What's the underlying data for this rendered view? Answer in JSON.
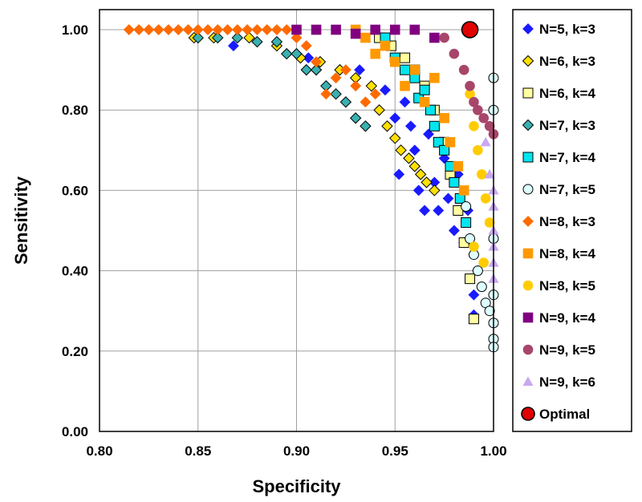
{
  "chart_data": {
    "type": "scatter",
    "xlabel": "Specificity",
    "ylabel": "Sensitivity",
    "xlim": [
      0.8,
      1.0
    ],
    "ylim": [
      0.0,
      1.05
    ],
    "xticks": [
      "0.80",
      "0.85",
      "0.90",
      "0.95",
      "1.00"
    ],
    "yticks": [
      "0.00",
      "0.20",
      "0.40",
      "0.60",
      "0.80",
      "1.00"
    ],
    "grid": true,
    "legend_position": "right",
    "series": [
      {
        "name": "N=5, k=3",
        "marker": "diamond",
        "color": "#1a1aff",
        "stroke": "#1a1aff",
        "x": [
          0.868,
          0.906,
          0.932,
          0.945,
          0.95,
          0.952,
          0.955,
          0.958,
          0.96,
          0.962,
          0.965,
          0.967,
          0.97,
          0.972,
          0.975,
          0.977,
          0.98,
          0.982,
          0.985,
          0.987,
          0.99,
          0.99,
          0.992
        ],
        "y": [
          0.96,
          0.93,
          0.9,
          0.85,
          0.78,
          0.64,
          0.82,
          0.76,
          0.7,
          0.6,
          0.55,
          0.74,
          0.62,
          0.55,
          0.68,
          0.58,
          0.5,
          0.64,
          0.47,
          0.55,
          0.29,
          0.34,
          0.4
        ]
      },
      {
        "name": "N=6, k=3",
        "marker": "diamond",
        "color": "#ffe000",
        "stroke": "#000000",
        "x": [
          0.848,
          0.858,
          0.876,
          0.89,
          0.902,
          0.912,
          0.922,
          0.93,
          0.938,
          0.942,
          0.946,
          0.95,
          0.953,
          0.957,
          0.96,
          0.963,
          0.966,
          0.97
        ],
        "y": [
          0.98,
          0.98,
          0.98,
          0.96,
          0.93,
          0.92,
          0.9,
          0.88,
          0.86,
          0.8,
          0.76,
          0.73,
          0.7,
          0.68,
          0.66,
          0.64,
          0.62,
          0.6
        ]
      },
      {
        "name": "N=6, k=4",
        "marker": "square",
        "color": "#ffffa0",
        "stroke": "#000000",
        "x": [
          0.942,
          0.948,
          0.955,
          0.96,
          0.965,
          0.97,
          0.975,
          0.978,
          0.982,
          0.985,
          0.988,
          0.99
        ],
        "y": [
          0.98,
          0.96,
          0.93,
          0.9,
          0.86,
          0.8,
          0.72,
          0.64,
          0.55,
          0.47,
          0.38,
          0.28
        ]
      },
      {
        "name": "N=7, k=3",
        "marker": "diamond",
        "color": "#3ab0b0",
        "stroke": "#000000",
        "x": [
          0.85,
          0.86,
          0.87,
          0.88,
          0.89,
          0.895,
          0.9,
          0.905,
          0.91,
          0.915,
          0.92,
          0.925,
          0.93,
          0.935
        ],
        "y": [
          0.98,
          0.98,
          0.98,
          0.97,
          0.97,
          0.94,
          0.94,
          0.9,
          0.9,
          0.86,
          0.84,
          0.82,
          0.78,
          0.76
        ]
      },
      {
        "name": "N=7, k=4",
        "marker": "square",
        "color": "#00e5ee",
        "stroke": "#000000",
        "x": [
          0.945,
          0.95,
          0.955,
          0.96,
          0.962,
          0.965,
          0.968,
          0.97,
          0.972,
          0.975,
          0.978,
          0.98,
          0.983,
          0.986
        ],
        "y": [
          0.98,
          0.93,
          0.9,
          0.88,
          0.83,
          0.85,
          0.8,
          0.76,
          0.72,
          0.7,
          0.66,
          0.62,
          0.58,
          0.52
        ]
      },
      {
        "name": "N=7, k=5",
        "marker": "circle",
        "color": "#ddffff",
        "stroke": "#000000",
        "x": [
          0.986,
          0.988,
          0.99,
          0.992,
          0.994,
          0.996,
          0.998,
          1.0,
          1.0,
          1.0,
          1.0,
          1.0,
          1.0,
          1.0
        ],
        "y": [
          0.56,
          0.48,
          0.44,
          0.4,
          0.36,
          0.32,
          0.3,
          0.27,
          0.23,
          0.21,
          0.8,
          0.88,
          0.34,
          0.48
        ]
      },
      {
        "name": "N=8, k=3",
        "marker": "diamond",
        "color": "#ff6a00",
        "stroke": "#ff6a00",
        "x": [
          0.815,
          0.82,
          0.825,
          0.83,
          0.835,
          0.84,
          0.845,
          0.85,
          0.855,
          0.86,
          0.865,
          0.87,
          0.875,
          0.88,
          0.885,
          0.89,
          0.895,
          0.9,
          0.905,
          0.91,
          0.915,
          0.92,
          0.925,
          0.93,
          0.935,
          0.94
        ],
        "y": [
          1.0,
          1.0,
          1.0,
          1.0,
          1.0,
          1.0,
          1.0,
          1.0,
          1.0,
          1.0,
          1.0,
          1.0,
          1.0,
          1.0,
          1.0,
          1.0,
          1.0,
          0.98,
          0.96,
          0.92,
          0.84,
          0.88,
          0.9,
          0.86,
          0.82,
          0.84
        ]
      },
      {
        "name": "N=8, k=4",
        "marker": "square",
        "color": "#ff9900",
        "stroke": "#ff9900",
        "x": [
          0.93,
          0.935,
          0.94,
          0.945,
          0.95,
          0.955,
          0.96,
          0.965,
          0.97,
          0.975,
          0.978,
          0.982,
          0.985
        ],
        "y": [
          1.0,
          0.98,
          0.94,
          0.96,
          0.92,
          0.86,
          0.9,
          0.82,
          0.88,
          0.78,
          0.72,
          0.66,
          0.6
        ]
      },
      {
        "name": "N=8, k=5",
        "marker": "circle",
        "color": "#ffcc00",
        "stroke": "#ffcc00",
        "x": [
          0.985,
          0.988,
          0.99,
          0.992,
          0.994,
          0.996,
          0.998,
          0.99,
          0.995
        ],
        "y": [
          0.9,
          0.84,
          0.76,
          0.7,
          0.64,
          0.58,
          0.52,
          0.46,
          0.42
        ]
      },
      {
        "name": "N=9, k=4",
        "marker": "square",
        "color": "#800080",
        "stroke": "#800080",
        "x": [
          0.9,
          0.91,
          0.92,
          0.93,
          0.94,
          0.95,
          0.96,
          0.97
        ],
        "y": [
          1.0,
          1.0,
          1.0,
          0.99,
          1.0,
          1.0,
          1.0,
          0.98
        ]
      },
      {
        "name": "N=9, k=5",
        "marker": "circle",
        "color": "#a8456b",
        "stroke": "#a8456b",
        "x": [
          0.975,
          0.98,
          0.985,
          0.988,
          0.99,
          0.992,
          0.995,
          0.998,
          1.0
        ],
        "y": [
          0.98,
          0.94,
          0.9,
          0.86,
          0.82,
          0.8,
          0.78,
          0.76,
          0.74
        ]
      },
      {
        "name": "N=9, k=6",
        "marker": "triangle",
        "color": "#c8a8f0",
        "stroke": "#c8a8f0",
        "x": [
          0.996,
          0.998,
          1.0,
          1.0,
          1.0,
          1.0,
          1.0,
          1.0
        ],
        "y": [
          0.72,
          0.64,
          0.6,
          0.56,
          0.5,
          0.46,
          0.42,
          0.38
        ]
      },
      {
        "name": "Optimal",
        "marker": "circle-large",
        "color": "#e00000",
        "stroke": "#000000",
        "x": [
          0.988
        ],
        "y": [
          1.0
        ]
      }
    ]
  }
}
